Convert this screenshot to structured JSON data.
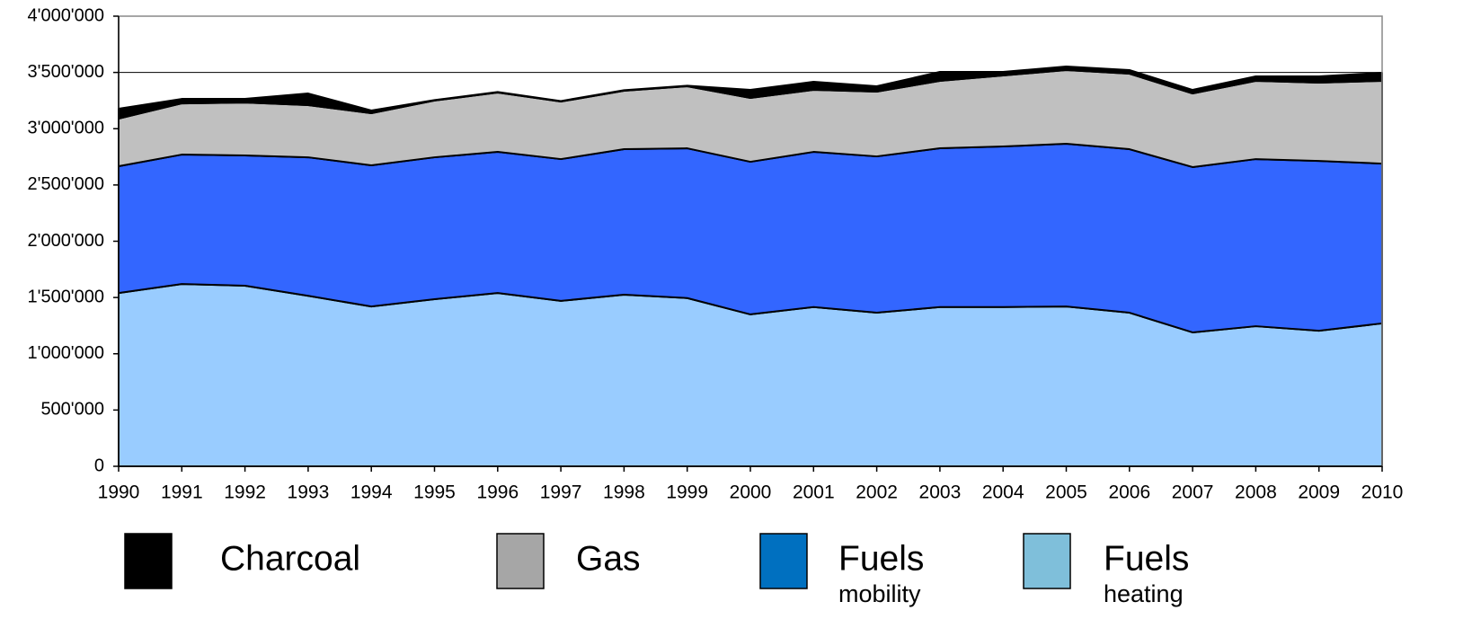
{
  "chart_data": {
    "type": "stacked_area",
    "x": [
      1990,
      1991,
      1992,
      1993,
      1994,
      1995,
      1996,
      1997,
      1998,
      1999,
      2000,
      2001,
      2002,
      2003,
      2004,
      2005,
      2006,
      2007,
      2008,
      2009,
      2010
    ],
    "xlim": [
      1990,
      2010
    ],
    "xticks": [
      1990,
      1991,
      1992,
      1993,
      1994,
      1995,
      1996,
      1997,
      1998,
      1999,
      2000,
      2001,
      2002,
      2003,
      2004,
      2005,
      2006,
      2007,
      2008,
      2009,
      2010
    ],
    "ylim": [
      0,
      4000000
    ],
    "yticks": [
      0,
      {
        "value": 500000,
        "label": "500'000"
      },
      {
        "value": 1000000,
        "label": "1'000'000"
      },
      {
        "value": 1500000,
        "label": "1'500'000"
      },
      {
        "value": 2000000,
        "label": "2'000'000"
      },
      {
        "value": 2500000,
        "label": "2'500'000"
      },
      {
        "value": 3000000,
        "label": "3'000'000"
      },
      {
        "value": 3500000,
        "label": "3'500'000"
      },
      {
        "value": 4000000,
        "label": "4'000'000"
      }
    ],
    "grid": true,
    "series": [
      {
        "name": "Charcoal",
        "color": "#000000",
        "legend_color": "#000000",
        "values": [
          88000,
          40000,
          32000,
          103000,
          24000,
          5000,
          5000,
          5000,
          5000,
          5000,
          72000,
          72000,
          48000,
          80000,
          32000,
          32000,
          32000,
          32000,
          40000,
          56000,
          72000
        ]
      },
      {
        "name": "Gas",
        "color": "#c0c0c0",
        "legend_color": "#a6a6a6",
        "values": [
          423000,
          455000,
          471000,
          464000,
          463000,
          504000,
          527000,
          511000,
          519000,
          551000,
          567000,
          551000,
          575000,
          599000,
          631000,
          655000,
          671000,
          654000,
          695000,
          695000,
          735000
        ]
      },
      {
        "name": "Fuels",
        "sublabel": "mobility",
        "color": "#3366ff",
        "legend_color": "#0070c0",
        "values": [
          1127000,
          1150000,
          1157000,
          1231000,
          1255000,
          1261000,
          1254000,
          1260000,
          1293000,
          1331000,
          1356000,
          1379000,
          1389000,
          1411000,
          1427000,
          1446000,
          1453000,
          1469000,
          1485000,
          1509000,
          1420000
        ]
      },
      {
        "name": "Fuels",
        "sublabel": "heating",
        "color": "#99ccff",
        "legend_color": "#7fbfda",
        "values": [
          1540000,
          1620000,
          1605000,
          1515000,
          1420000,
          1485000,
          1540000,
          1470000,
          1525000,
          1495000,
          1350000,
          1415000,
          1365000,
          1415000,
          1415000,
          1420000,
          1365000,
          1190000,
          1245000,
          1205000,
          1270000
        ]
      }
    ]
  }
}
